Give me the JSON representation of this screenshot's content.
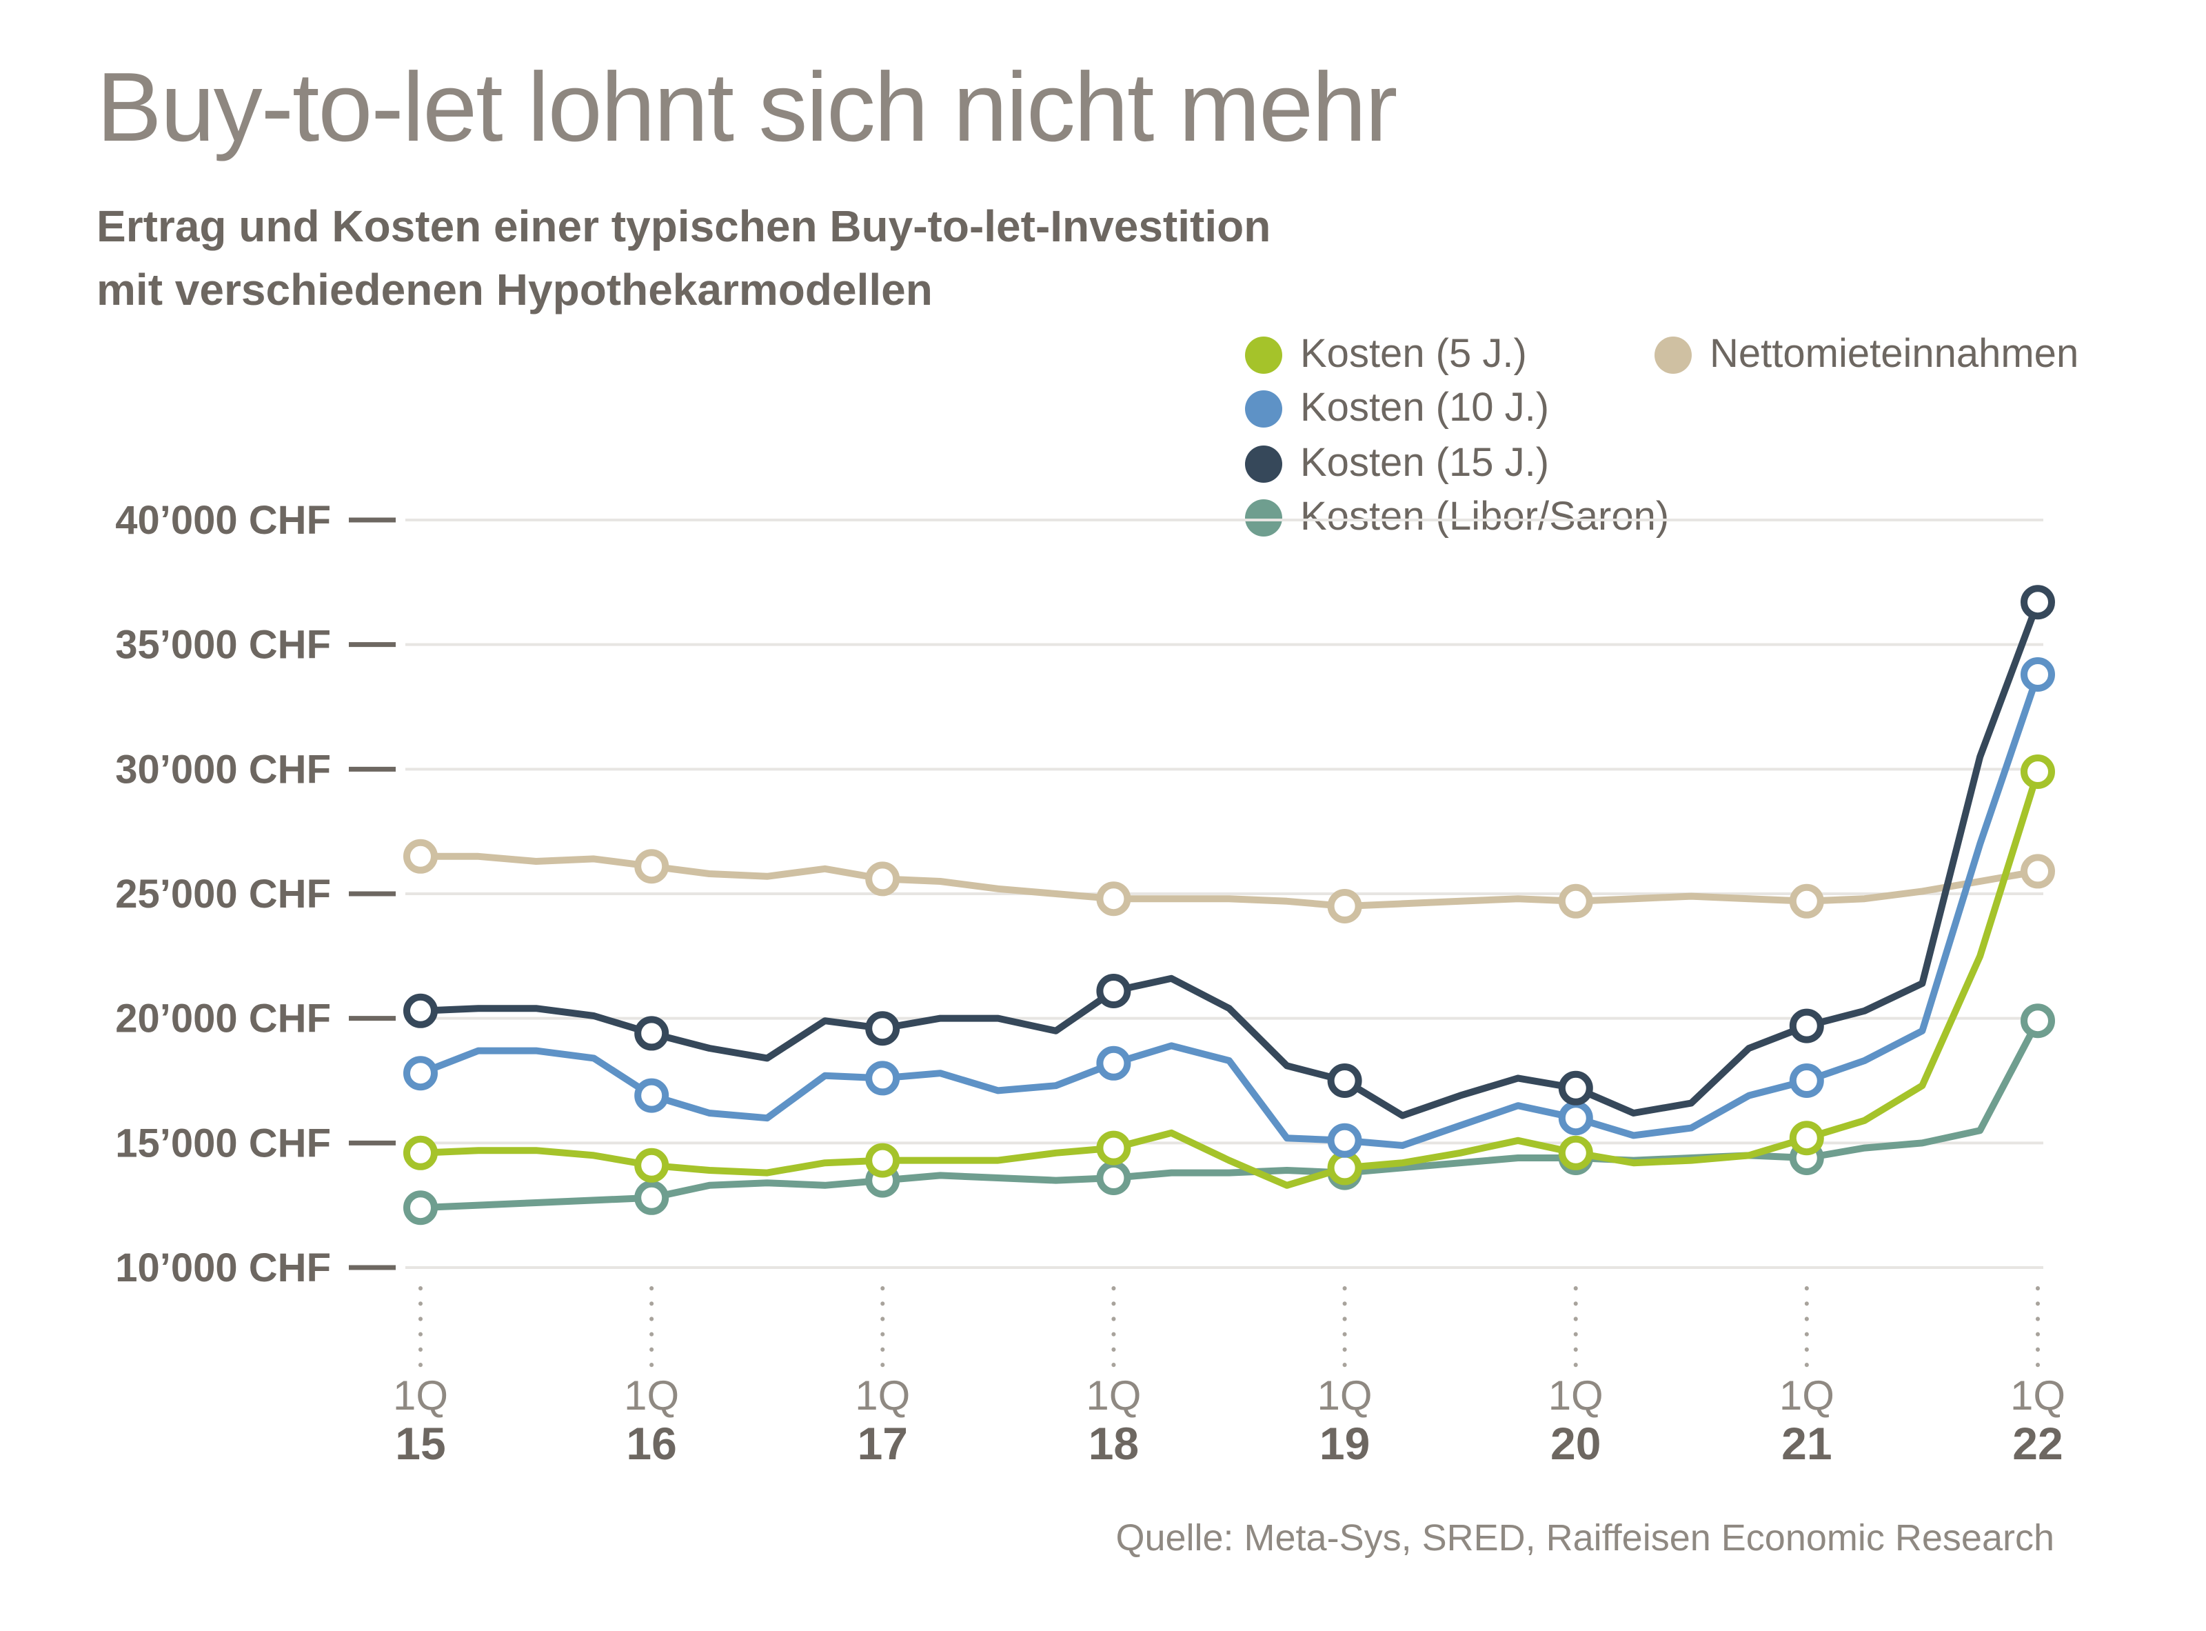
{
  "title": "Buy-to-let lohnt sich nicht mehr",
  "subtitle": [
    "Ertrag und Kosten einer typischen Buy-to-let-Investition",
    "mit verschiedenen Hypothekarmodellen"
  ],
  "source": "Quelle: Meta-Sys, SRED, Raiffeisen Economic Research",
  "legend": [
    {
      "label": "Kosten (5 J.)",
      "color": "#a5c32a"
    },
    {
      "label": "Kosten (10 J.)",
      "color": "#5e92c6"
    },
    {
      "label": "Kosten (15 J.)",
      "color": "#36485a"
    },
    {
      "label": "Kosten (Libor/Saron)",
      "color": "#6f9e8f"
    },
    {
      "label": "Nettomieteinnahmen",
      "color": "#cfc0a2"
    }
  ],
  "chart_data": {
    "type": "line",
    "title": "Buy-to-let lohnt sich nicht mehr",
    "subtitle": "Ertrag und Kosten einer typischen Buy-to-let-Investition mit verschiedenen Hypothekarmodellen",
    "unit": "CHF",
    "n_points": 29,
    "points_per_year": 4,
    "marker_every": 4,
    "grid": true,
    "legend_position": "top-right",
    "x_ticks": [
      {
        "quarter": "1Q",
        "year": "15"
      },
      {
        "quarter": "1Q",
        "year": "16"
      },
      {
        "quarter": "1Q",
        "year": "17"
      },
      {
        "quarter": "1Q",
        "year": "18"
      },
      {
        "quarter": "1Q",
        "year": "19"
      },
      {
        "quarter": "1Q",
        "year": "20"
      },
      {
        "quarter": "1Q",
        "year": "21"
      },
      {
        "quarter": "1Q",
        "year": "22"
      }
    ],
    "y_axis": {
      "min": 10000,
      "max": 40000,
      "tick_step": 5000,
      "ticks": [
        {
          "value": 40000,
          "label": "40’000 CHF"
        },
        {
          "value": 35000,
          "label": "35’000 CHF"
        },
        {
          "value": 30000,
          "label": "30’000 CHF"
        },
        {
          "value": 25000,
          "label": "25’000 CHF"
        },
        {
          "value": 20000,
          "label": "20’000 CHF"
        },
        {
          "value": 15000,
          "label": "15’000 CHF"
        },
        {
          "value": 10000,
          "label": "10’000 CHF"
        }
      ]
    },
    "series": [
      {
        "name": "Kosten (5 J.)",
        "color": "#a5c32a",
        "values": [
          14600,
          14700,
          14700,
          14500,
          14100,
          13900,
          13800,
          14200,
          14300,
          14300,
          14300,
          14600,
          14800,
          15400,
          14300,
          13300,
          14000,
          14200,
          14600,
          15100,
          14600,
          14200,
          14300,
          14500,
          15200,
          15900,
          17300,
          22500,
          29900
        ]
      },
      {
        "name": "Kosten (10 J.)",
        "color": "#5e92c6",
        "values": [
          17800,
          18700,
          18700,
          18400,
          16900,
          16200,
          16000,
          17700,
          17600,
          17800,
          17100,
          17300,
          18200,
          18900,
          18300,
          15200,
          15100,
          14900,
          15700,
          16500,
          16000,
          15300,
          15600,
          16900,
          17500,
          18300,
          19500,
          27000,
          33800
        ]
      },
      {
        "name": "Kosten (15 J.)",
        "color": "#36485a",
        "values": [
          20300,
          20400,
          20400,
          20100,
          19400,
          18800,
          18400,
          19900,
          19600,
          20000,
          20000,
          19500,
          21100,
          21600,
          20400,
          18100,
          17500,
          16100,
          16900,
          17600,
          17200,
          16200,
          16600,
          18800,
          19700,
          20300,
          21400,
          30500,
          36700
        ]
      },
      {
        "name": "Kosten (Libor/Saron)",
        "color": "#6f9e8f",
        "values": [
          12400,
          12500,
          12600,
          12700,
          12800,
          13300,
          13400,
          13300,
          13500,
          13700,
          13600,
          13500,
          13600,
          13800,
          13800,
          13900,
          13800,
          14000,
          14200,
          14400,
          14400,
          14300,
          14400,
          14500,
          14400,
          14800,
          15000,
          15500,
          19900
        ]
      },
      {
        "name": "Nettomieteinnahmen",
        "color": "#cfc0a2",
        "values": [
          26500,
          26500,
          26300,
          26400,
          26100,
          25800,
          25700,
          26000,
          25600,
          25500,
          25200,
          25000,
          24800,
          24800,
          24800,
          24700,
          24500,
          24600,
          24700,
          24800,
          24700,
          24800,
          24900,
          24800,
          24700,
          24800,
          25100,
          25500,
          25900
        ]
      }
    ],
    "draw_order": [
      4,
      3,
      0,
      1,
      2
    ]
  }
}
